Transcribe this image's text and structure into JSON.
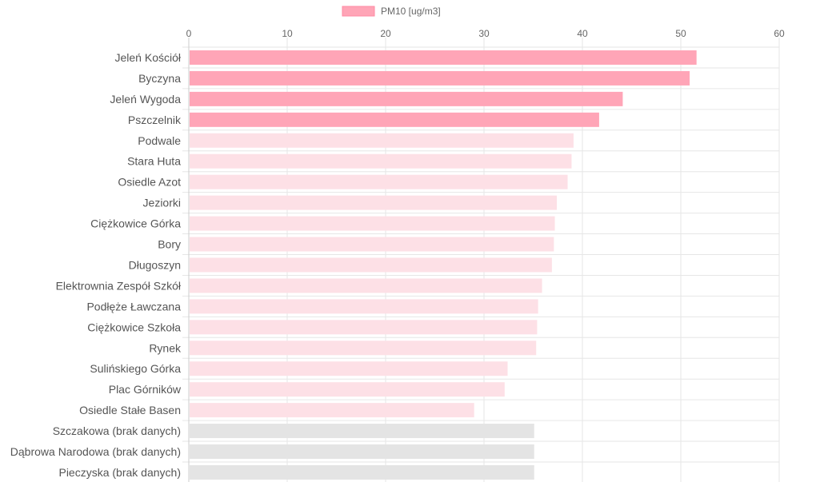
{
  "chart_data": {
    "type": "bar",
    "orientation": "horizontal",
    "legend": {
      "label": "PM10 [ug/m3]",
      "color": "#ffa5b7",
      "position": "top-center"
    },
    "x_axis": {
      "position": "top",
      "min": 0,
      "max": 60,
      "ticks": [
        "0",
        "10",
        "20",
        "30",
        "40",
        "50",
        "60"
      ]
    },
    "grid": true,
    "colors": {
      "high": "#ffa5b7",
      "medium": "#fde0e6",
      "no_data": "#e4e4e4",
      "grid": "#e6e6e6"
    },
    "categories": [
      "Jeleń Kościół",
      "Byczyna",
      "Jeleń Wygoda",
      "Pszczelnik",
      "Podwale",
      "Stara Huta",
      "Osiedle Azot",
      "Jeziorki",
      "Ciężkowice Górka",
      "Bory",
      "Długoszyn",
      "Elektrownia Zespół Szkół",
      "Podłęże Ławczana",
      "Ciężkowice Szkoła",
      "Rynek",
      "Sulińskiego Górka",
      "Plac Górników",
      "Osiedle Stałe Basen",
      "Szczakowa (brak danych)",
      "Dąbrowa Narodowa (brak danych)",
      "Pieczyska (brak danych)"
    ],
    "values": [
      51.6,
      50.9,
      44.1,
      41.7,
      39.1,
      38.9,
      38.5,
      37.4,
      37.2,
      37.1,
      36.9,
      35.9,
      35.5,
      35.4,
      35.3,
      32.4,
      32.1,
      29.0,
      35.1,
      35.1,
      35.1
    ],
    "levels": [
      "high",
      "high",
      "high",
      "high",
      "medium",
      "medium",
      "medium",
      "medium",
      "medium",
      "medium",
      "medium",
      "medium",
      "medium",
      "medium",
      "medium",
      "medium",
      "medium",
      "medium",
      "no_data",
      "no_data",
      "no_data"
    ]
  }
}
